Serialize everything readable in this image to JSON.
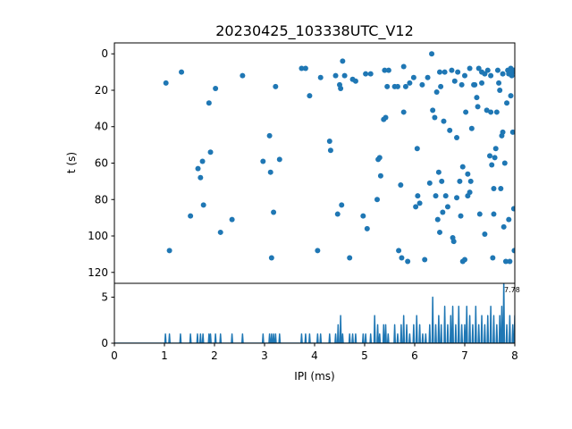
{
  "chart_data": [
    {
      "type": "scatter",
      "title": "20230425_103338UTC_V12",
      "xlabel": "",
      "ylabel": "t (s)",
      "xlim": [
        0,
        8
      ],
      "ylim": [
        126,
        -6
      ],
      "y_inverted": true,
      "yticks": [
        0,
        20,
        40,
        60,
        80,
        100,
        120
      ],
      "color": "#1f77b4",
      "series": [
        {
          "points": [
            [
              1.03,
              16
            ],
            [
              1.1,
              108
            ],
            [
              1.34,
              10
            ],
            [
              1.52,
              89
            ],
            [
              1.67,
              63
            ],
            [
              1.72,
              68
            ],
            [
              1.76,
              59
            ],
            [
              1.78,
              83
            ],
            [
              1.89,
              27
            ],
            [
              1.92,
              54
            ],
            [
              2.02,
              19
            ],
            [
              2.12,
              98
            ],
            [
              2.35,
              91
            ],
            [
              2.56,
              12
            ],
            [
              2.97,
              59
            ],
            [
              3.1,
              45
            ],
            [
              3.12,
              65
            ],
            [
              3.14,
              112
            ],
            [
              3.18,
              87
            ],
            [
              3.22,
              18
            ],
            [
              3.3,
              58
            ],
            [
              3.74,
              8
            ],
            [
              3.82,
              8
            ],
            [
              3.9,
              23
            ],
            [
              4.06,
              108
            ],
            [
              4.12,
              13
            ],
            [
              4.3,
              48
            ],
            [
              4.32,
              53
            ],
            [
              4.42,
              12
            ],
            [
              4.46,
              88
            ],
            [
              4.5,
              17
            ],
            [
              4.52,
              19
            ],
            [
              4.56,
              4
            ],
            [
              4.54,
              83
            ],
            [
              4.6,
              12
            ],
            [
              4.7,
              112
            ],
            [
              4.76,
              14
            ],
            [
              4.82,
              15
            ],
            [
              4.97,
              89
            ],
            [
              5.02,
              11
            ],
            [
              5.05,
              96
            ],
            [
              5.12,
              11
            ],
            [
              5.25,
              80
            ],
            [
              5.27,
              58
            ],
            [
              5.3,
              57
            ],
            [
              5.32,
              67
            ],
            [
              5.4,
              9
            ],
            [
              5.38,
              36
            ],
            [
              5.42,
              35
            ],
            [
              5.45,
              18
            ],
            [
              5.48,
              9
            ],
            [
              5.6,
              18
            ],
            [
              5.66,
              18
            ],
            [
              5.68,
              108
            ],
            [
              5.72,
              72
            ],
            [
              5.74,
              112
            ],
            [
              5.78,
              32
            ],
            [
              5.82,
              18
            ],
            [
              5.78,
              7
            ],
            [
              5.86,
              114
            ],
            [
              5.9,
              16
            ],
            [
              5.98,
              13
            ],
            [
              6.02,
              84
            ],
            [
              6.05,
              52
            ],
            [
              6.06,
              78
            ],
            [
              6.1,
              82
            ],
            [
              6.15,
              17
            ],
            [
              6.2,
              113
            ],
            [
              6.26,
              13
            ],
            [
              6.3,
              71
            ],
            [
              6.34,
              0
            ],
            [
              6.36,
              31
            ],
            [
              6.4,
              35
            ],
            [
              6.42,
              78
            ],
            [
              6.44,
              21
            ],
            [
              6.46,
              91
            ],
            [
              6.48,
              65
            ],
            [
              6.5,
              98
            ],
            [
              6.5,
              10
            ],
            [
              6.52,
              18
            ],
            [
              6.54,
              70
            ],
            [
              6.58,
              37
            ],
            [
              6.6,
              10
            ],
            [
              6.62,
              78
            ],
            [
              6.66,
              84
            ],
            [
              6.7,
              42
            ],
            [
              6.74,
              9
            ],
            [
              6.78,
              103
            ],
            [
              6.8,
              15
            ],
            [
              6.84,
              46
            ],
            [
              6.84,
              79
            ],
            [
              6.9,
              70
            ],
            [
              6.92,
              89
            ],
            [
              6.94,
              17
            ],
            [
              6.96,
              114
            ],
            [
              7.0,
              12
            ],
            [
              7.0,
              113
            ],
            [
              7.02,
              32
            ],
            [
              7.06,
              78
            ],
            [
              7.1,
              8
            ],
            [
              7.12,
              70
            ],
            [
              7.14,
              41
            ],
            [
              7.18,
              17
            ],
            [
              7.2,
              17
            ],
            [
              7.24,
              24
            ],
            [
              7.28,
              8
            ],
            [
              7.3,
              88
            ],
            [
              7.34,
              16
            ],
            [
              7.4,
              99
            ],
            [
              7.44,
              31
            ],
            [
              7.46,
              9
            ],
            [
              7.5,
              56
            ],
            [
              7.52,
              32
            ],
            [
              7.54,
              61
            ],
            [
              7.58,
              88
            ],
            [
              7.56,
              112
            ],
            [
              7.6,
              57
            ],
            [
              7.62,
              52
            ],
            [
              7.64,
              32
            ],
            [
              7.68,
              16
            ],
            [
              7.7,
              20
            ],
            [
              7.72,
              74
            ],
            [
              7.74,
              45
            ],
            [
              7.76,
              43
            ],
            [
              7.78,
              95
            ],
            [
              7.8,
              60
            ],
            [
              7.82,
              114
            ],
            [
              7.84,
              27
            ],
            [
              7.86,
              9
            ],
            [
              7.88,
              91
            ],
            [
              7.9,
              114
            ],
            [
              7.92,
              8
            ],
            [
              7.94,
              12
            ],
            [
              7.96,
              43
            ],
            [
              7.98,
              85
            ],
            [
              7.99,
              108
            ],
            [
              7.92,
              23
            ],
            [
              7.4,
              11
            ],
            [
              7.34,
              10
            ],
            [
              7.52,
              12
            ],
            [
              7.66,
              9
            ],
            [
              7.76,
              11
            ],
            [
              7.88,
              11
            ],
            [
              7.96,
              10
            ],
            [
              7.1,
              76
            ],
            [
              7.06,
              66
            ],
            [
              6.96,
              62
            ],
            [
              6.86,
              10
            ],
            [
              6.56,
              87
            ],
            [
              6.76,
              101
            ],
            [
              7.26,
              29
            ],
            [
              7.58,
              74
            ],
            [
              7.98,
              9
            ]
          ]
        }
      ]
    },
    {
      "type": "line",
      "xlabel": "IPI (ms)",
      "ylabel": "",
      "xlim": [
        0,
        8
      ],
      "ylim": [
        0,
        6.5
      ],
      "xticks": [
        0,
        1,
        2,
        3,
        4,
        5,
        6,
        7,
        8
      ],
      "yticks": [
        0,
        5
      ],
      "color": "#1f77b4",
      "annotation": "7.78",
      "series": [
        {
          "spikes": [
            [
              1.02,
              1
            ],
            [
              1.1,
              1
            ],
            [
              1.32,
              1
            ],
            [
              1.52,
              1
            ],
            [
              1.66,
              1
            ],
            [
              1.72,
              1
            ],
            [
              1.77,
              1
            ],
            [
              1.89,
              1
            ],
            [
              1.92,
              1
            ],
            [
              2.02,
              1
            ],
            [
              2.12,
              1
            ],
            [
              2.35,
              1
            ],
            [
              2.56,
              1
            ],
            [
              2.97,
              1
            ],
            [
              3.1,
              1
            ],
            [
              3.14,
              1
            ],
            [
              3.18,
              1
            ],
            [
              3.22,
              1
            ],
            [
              3.3,
              1
            ],
            [
              3.74,
              1
            ],
            [
              3.82,
              1
            ],
            [
              3.9,
              1
            ],
            [
              4.06,
              1
            ],
            [
              4.12,
              1
            ],
            [
              4.3,
              1
            ],
            [
              4.42,
              1
            ],
            [
              4.47,
              2
            ],
            [
              4.52,
              3
            ],
            [
              4.56,
              1
            ],
            [
              4.7,
              1
            ],
            [
              4.76,
              1
            ],
            [
              4.82,
              1
            ],
            [
              4.97,
              1
            ],
            [
              5.02,
              1
            ],
            [
              5.12,
              1
            ],
            [
              5.2,
              3
            ],
            [
              5.26,
              2
            ],
            [
              5.3,
              1
            ],
            [
              5.38,
              2
            ],
            [
              5.42,
              2
            ],
            [
              5.47,
              1
            ],
            [
              5.6,
              2
            ],
            [
              5.66,
              1
            ],
            [
              5.73,
              2
            ],
            [
              5.78,
              3
            ],
            [
              5.84,
              2
            ],
            [
              5.9,
              1
            ],
            [
              5.98,
              2
            ],
            [
              6.04,
              3
            ],
            [
              6.1,
              2
            ],
            [
              6.16,
              1
            ],
            [
              6.22,
              1
            ],
            [
              6.3,
              2
            ],
            [
              6.36,
              5
            ],
            [
              6.42,
              2
            ],
            [
              6.48,
              3
            ],
            [
              6.53,
              2
            ],
            [
              6.6,
              4
            ],
            [
              6.66,
              2
            ],
            [
              6.72,
              3
            ],
            [
              6.76,
              4
            ],
            [
              6.82,
              2
            ],
            [
              6.88,
              4
            ],
            [
              6.94,
              2
            ],
            [
              7.0,
              2
            ],
            [
              7.04,
              4
            ],
            [
              7.1,
              3
            ],
            [
              7.16,
              2
            ],
            [
              7.22,
              4
            ],
            [
              7.28,
              2
            ],
            [
              7.34,
              3
            ],
            [
              7.4,
              2
            ],
            [
              7.46,
              3
            ],
            [
              7.52,
              4
            ],
            [
              7.58,
              3
            ],
            [
              7.64,
              2
            ],
            [
              7.7,
              3
            ],
            [
              7.74,
              4
            ],
            [
              7.78,
              7
            ],
            [
              7.84,
              2
            ],
            [
              7.9,
              3
            ],
            [
              7.96,
              2
            ],
            [
              8.0,
              3
            ]
          ]
        }
      ]
    }
  ]
}
